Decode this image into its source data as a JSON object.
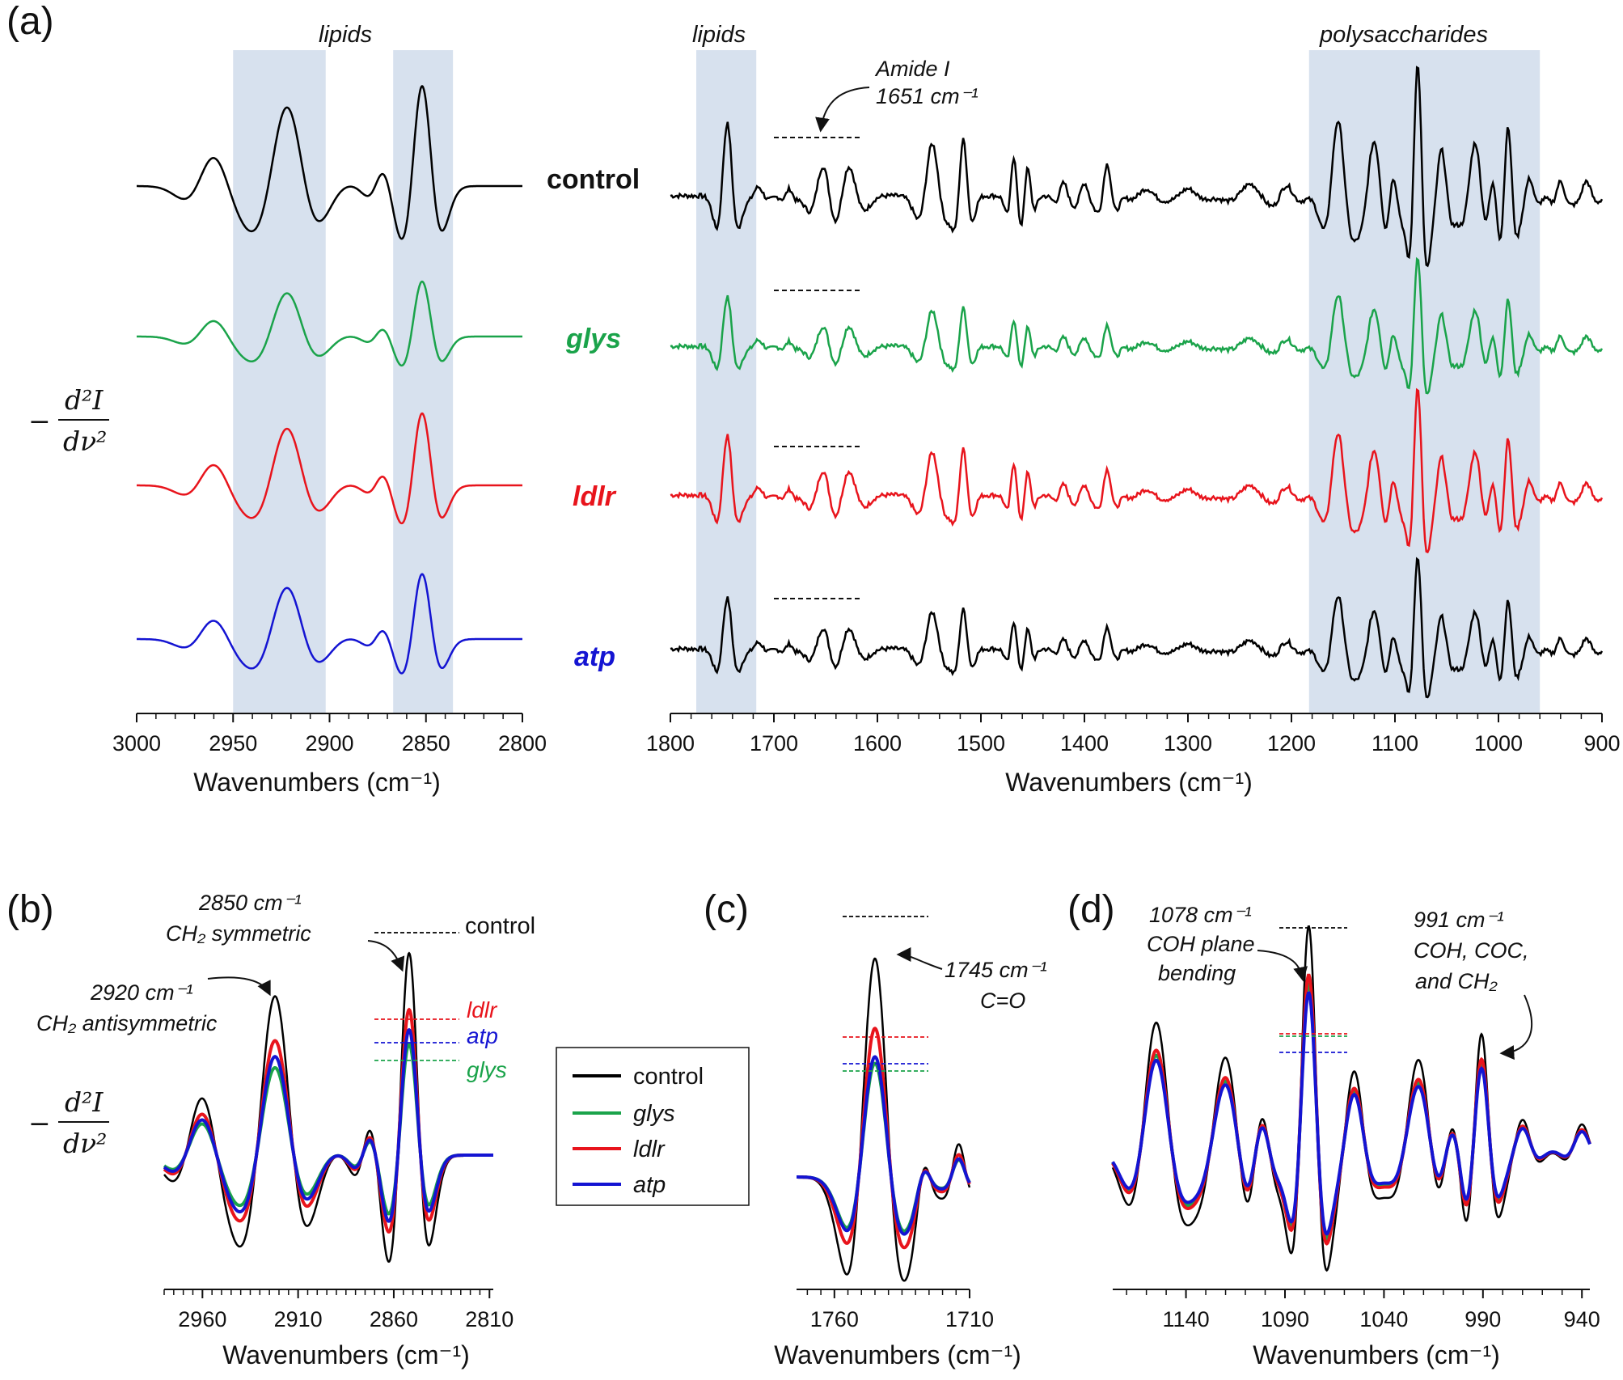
{
  "figure": {
    "panel_labels": {
      "a": "(a)",
      "b": "(b)",
      "c": "(c)",
      "d": "(d)"
    },
    "y_axis_label": {
      "sign": "−",
      "numerator": "d²I",
      "denominator": "dν²"
    },
    "x_axis_label": "Wavenumbers (cm⁻¹)",
    "colors": {
      "control": "#000000",
      "glys": "#1aa34a",
      "ldlr": "#e8141c",
      "atp": "#1414d2",
      "band": "#d7e1ee"
    }
  },
  "chart_data": [
    {
      "panel": "(a) left",
      "type": "line",
      "xlabel": "Wavenumbers (cm⁻¹)",
      "ylabel": "−d²I/dν²",
      "xlim": [
        3000,
        2800
      ],
      "x_ticks": [
        3000,
        2950,
        2900,
        2850,
        2800
      ],
      "x_tick_labels": [
        "3000",
        "2950",
        "2900",
        "2850",
        "2800"
      ],
      "highlight_bands": [
        {
          "from": 2950,
          "to": 2902,
          "label": "lipids"
        },
        {
          "from": 2867,
          "to": 2836,
          "label": ""
        }
      ],
      "peaks": [
        {
          "x": 2960,
          "w": 9,
          "a": 0.36
        },
        {
          "x": 2922,
          "w": 10,
          "a": 1.0
        },
        {
          "x": 2895,
          "w": 11,
          "a": 0.07
        },
        {
          "x": 2872,
          "w": 5,
          "a": 0.22
        },
        {
          "x": 2852,
          "w": 6,
          "a": 1.25
        }
      ],
      "series": [
        {
          "name": "control",
          "scale": 1.0
        },
        {
          "name": "glys",
          "scale": 0.55
        },
        {
          "name": "ldlr",
          "scale": 0.72
        },
        {
          "name": "atp",
          "scale": 0.65
        }
      ]
    },
    {
      "panel": "(a) right",
      "type": "line",
      "xlabel": "Wavenumbers (cm⁻¹)",
      "ylabel": "−d²I/dν²",
      "xlim": [
        1800,
        900
      ],
      "x_ticks": [
        1800,
        1700,
        1600,
        1500,
        1400,
        1300,
        1200,
        1100,
        1000,
        900
      ],
      "x_tick_labels": [
        "1800",
        "1700",
        "1600",
        "1500",
        "1400",
        "1300",
        "1200",
        "1100",
        "1000",
        "900"
      ],
      "highlight_bands": [
        {
          "from": 1775,
          "to": 1717,
          "label": "lipids"
        },
        {
          "from": 1183,
          "to": 960,
          "label": "polysaccharides"
        }
      ],
      "amide_line_range": [
        1700,
        1615
      ],
      "peaks": [
        {
          "x": 1745,
          "w": 6,
          "a": 1.25
        },
        {
          "x": 1715,
          "w": 6,
          "a": 0.15
        },
        {
          "x": 1685,
          "w": 4,
          "a": 0.12
        },
        {
          "x": 1652,
          "w": 8,
          "a": 0.6
        },
        {
          "x": 1628,
          "w": 9,
          "a": 0.55
        },
        {
          "x": 1547,
          "w": 8,
          "a": 0.9
        },
        {
          "x": 1517,
          "w": 5,
          "a": 0.98
        },
        {
          "x": 1468,
          "w": 4,
          "a": 0.7
        },
        {
          "x": 1455,
          "w": 4,
          "a": 0.5
        },
        {
          "x": 1420,
          "w": 5,
          "a": 0.22
        },
        {
          "x": 1400,
          "w": 5,
          "a": 0.22
        },
        {
          "x": 1378,
          "w": 5,
          "a": 0.55
        },
        {
          "x": 1340,
          "w": 9,
          "a": 0.12
        },
        {
          "x": 1300,
          "w": 10,
          "a": 0.12
        },
        {
          "x": 1240,
          "w": 12,
          "a": 0.2
        },
        {
          "x": 1205,
          "w": 8,
          "a": 0.2
        },
        {
          "x": 1155,
          "w": 8,
          "a": 1.3
        },
        {
          "x": 1120,
          "w": 8,
          "a": 0.95
        },
        {
          "x": 1102,
          "w": 5,
          "a": 0.6
        },
        {
          "x": 1078,
          "w": 5,
          "a": 2.3
        },
        {
          "x": 1055,
          "w": 6,
          "a": 0.8
        },
        {
          "x": 1022,
          "w": 8,
          "a": 1.0
        },
        {
          "x": 1005,
          "w": 6,
          "a": 0.75
        },
        {
          "x": 991,
          "w": 5,
          "a": 1.4
        },
        {
          "x": 970,
          "w": 5,
          "a": 0.3
        },
        {
          "x": 940,
          "w": 5,
          "a": 0.25
        },
        {
          "x": 915,
          "w": 6,
          "a": 0.25
        }
      ],
      "series": [
        {
          "name": "control",
          "scale": 1.0
        },
        {
          "name": "glys",
          "scale": 0.68
        },
        {
          "name": "ldlr",
          "scale": 0.82
        },
        {
          "name": "atp",
          "scale": 0.7
        }
      ]
    },
    {
      "panel": "(b)",
      "type": "line",
      "xlabel": "Wavenumbers (cm⁻¹)",
      "xlim": [
        2980,
        2808
      ],
      "x_ticks": [
        2960,
        2910,
        2860,
        2810
      ],
      "x_tick_labels": [
        "2960",
        "2910",
        "2860",
        "2810"
      ],
      "peaks": [
        {
          "x": 2960,
          "w": 9,
          "a": 0.36
        },
        {
          "x": 2922,
          "w": 10,
          "a": 1.0
        },
        {
          "x": 2895,
          "w": 11,
          "a": 0.07
        },
        {
          "x": 2872,
          "w": 5,
          "a": 0.22
        },
        {
          "x": 2852,
          "w": 6,
          "a": 1.25
        }
      ],
      "series": [
        {
          "name": "control",
          "scale": 1.0
        },
        {
          "name": "glys",
          "scale": 0.55
        },
        {
          "name": "ldlr",
          "scale": 0.72
        },
        {
          "name": "atp",
          "scale": 0.62
        }
      ]
    },
    {
      "panel": "(c)",
      "type": "line",
      "xlabel": "Wavenumbers (cm⁻¹)",
      "xlim": [
        1774,
        1710
      ],
      "x_ticks": [
        1760,
        1710
      ],
      "x_tick_labels": [
        "1760",
        "1710"
      ],
      "peaks": [
        {
          "x": 1745,
          "w": 6,
          "a": 1.0
        },
        {
          "x": 1727,
          "w": 3,
          "a": 0.12
        },
        {
          "x": 1714,
          "w": 3,
          "a": 0.15
        }
      ],
      "series": [
        {
          "name": "control",
          "scale": 1.0
        },
        {
          "name": "glys",
          "scale": 0.52
        },
        {
          "name": "ldlr",
          "scale": 0.68
        },
        {
          "name": "atp",
          "scale": 0.55
        }
      ]
    },
    {
      "panel": "(d)",
      "type": "line",
      "xlabel": "Wavenumbers (cm⁻¹)",
      "xlim": [
        1177,
        936
      ],
      "x_ticks": [
        1140,
        1090,
        1040,
        990,
        940
      ],
      "x_tick_labels": [
        "1140",
        "1090",
        "1040",
        "990",
        "940"
      ],
      "peaks": [
        {
          "x": 1155,
          "w": 8,
          "a": 1.3
        },
        {
          "x": 1120,
          "w": 8,
          "a": 0.95
        },
        {
          "x": 1102,
          "w": 5,
          "a": 0.6
        },
        {
          "x": 1078,
          "w": 5,
          "a": 2.3
        },
        {
          "x": 1055,
          "w": 6,
          "a": 0.8
        },
        {
          "x": 1022,
          "w": 8,
          "a": 1.0
        },
        {
          "x": 1005,
          "w": 6,
          "a": 0.75
        },
        {
          "x": 991,
          "w": 5,
          "a": 1.4
        },
        {
          "x": 970,
          "w": 5,
          "a": 0.3
        },
        {
          "x": 940,
          "w": 5,
          "a": 0.25
        }
      ],
      "series": [
        {
          "name": "control",
          "scale": 1.0
        },
        {
          "name": "glys",
          "scale": 0.74
        },
        {
          "name": "ldlr",
          "scale": 0.78
        },
        {
          "name": "atp",
          "scale": 0.7
        }
      ]
    }
  ],
  "labels": {
    "samples": {
      "control": "control",
      "glys": "glys",
      "ldlr": "ldlr",
      "atp": "atp"
    },
    "bands": {
      "lipids_left": "lipids",
      "lipids_right": "lipids",
      "polysaccharides": "polysaccharides"
    },
    "amide": {
      "line1": "Amide I",
      "line2": "1651 cm⁻¹"
    },
    "b_ann": {
      "peak2850_line1": "2850 cm⁻¹",
      "peak2850_line2": "CH₂  symmetric",
      "peak2920_line1": "2920 cm⁻¹",
      "peak2920_line2": "CH₂ antisymmetric",
      "control": "control",
      "ldlr": "ldlr",
      "atp": "atp",
      "glys": "glys"
    },
    "c_ann": {
      "line1": "1745 cm⁻¹",
      "line2": "C=O"
    },
    "d_ann": {
      "peak1078_line1": "1078 cm⁻¹",
      "peak1078_line2": "COH plane",
      "peak1078_line3": "bending",
      "peak991_line1": "991 cm⁻¹",
      "peak991_line2": "COH, COC,",
      "peak991_line3": "and  CH₂"
    },
    "legend": [
      "control",
      "glys",
      "ldlr",
      "atp"
    ]
  }
}
